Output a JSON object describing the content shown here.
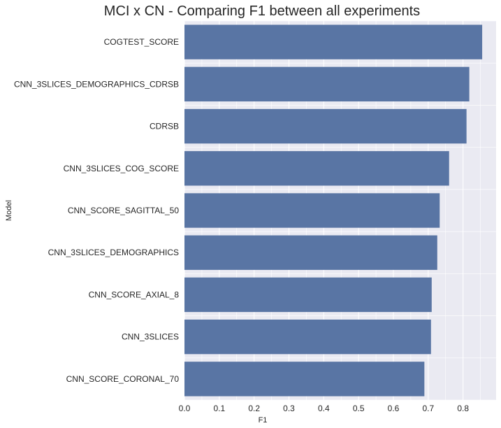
{
  "chart_data": {
    "type": "bar",
    "orientation": "horizontal",
    "title": "MCI x CN - Comparing F1 between all experiments",
    "xlabel": "F1",
    "ylabel": "Model",
    "categories": [
      "COGTEST_SCORE",
      "CNN_3SLICES_DEMOGRAPHICS_CDRSB",
      "CDRSB",
      "CNN_3SLICES_COG_SCORE",
      "CNN_SCORE_SAGITTAL_50",
      "CNN_3SLICES_DEMOGRAPHICS",
      "CNN_SCORE_AXIAL_8",
      "CNN_3SLICES",
      "CNN_SCORE_CORONAL_70"
    ],
    "values": [
      0.855,
      0.818,
      0.81,
      0.76,
      0.733,
      0.726,
      0.71,
      0.708,
      0.689
    ],
    "xlim": [
      0,
      0.895
    ],
    "xticks": [
      "0.0",
      "0.1",
      "0.2",
      "0.3",
      "0.4",
      "0.5",
      "0.6",
      "0.7",
      "0.8"
    ],
    "grid": true,
    "colors": {
      "bar": "#5975a4",
      "background": "#eaeaf2",
      "grid": "#ffffff"
    }
  }
}
